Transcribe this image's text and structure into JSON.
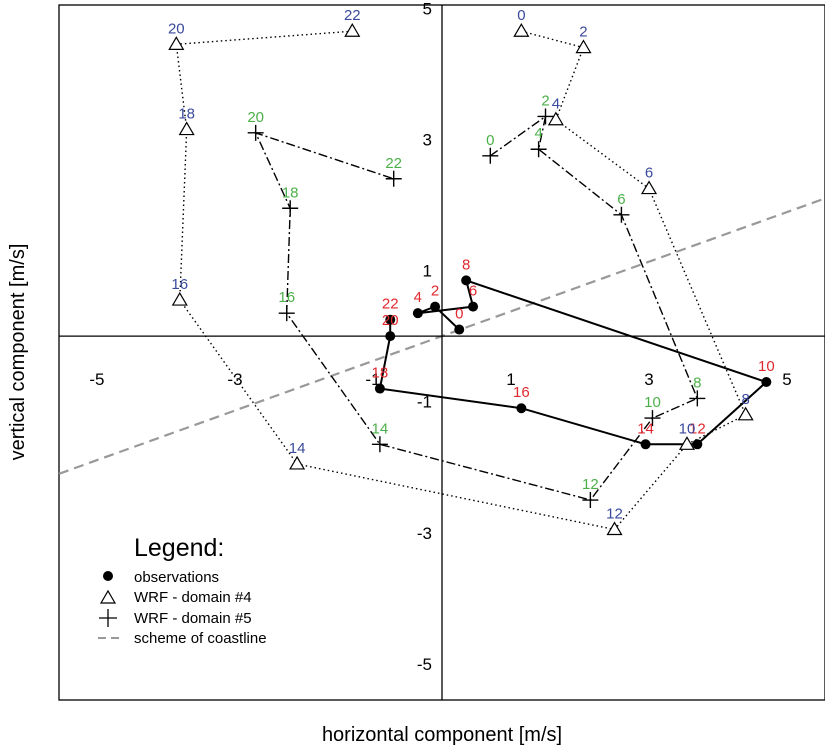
{
  "chart_data": {
    "type": "scatter",
    "xlabel": "horizontal component [m/s]",
    "ylabel": "vertical component [m/s]",
    "xlim": [
      -5.55,
      5.55
    ],
    "ylim": [
      -5.55,
      5.05
    ],
    "x_ticks": [
      -5,
      -3,
      -1,
      1,
      3,
      5
    ],
    "y_ticks": [
      -5,
      -3,
      -1,
      1,
      3,
      5
    ],
    "origin_axes": true,
    "legend": {
      "title": "Legend:",
      "placement": "bottom-left",
      "entries": [
        {
          "label": "observations",
          "symbol": "filled-circle"
        },
        {
          "label": "WRF - domain #4",
          "symbol": "triangle"
        },
        {
          "label": "WRF - domain #5",
          "symbol": "plus"
        },
        {
          "label": "scheme of coastline",
          "symbol": "dashed-line"
        }
      ]
    },
    "colors": {
      "observations_labels": "#e0282e",
      "domain4_labels": "#3a4a9e",
      "domain5_labels": "#4cb04a",
      "coastline": "#999999",
      "series": "#000000"
    },
    "coastline": {
      "x": [
        -5.55,
        5.55
      ],
      "y": [
        -2.1,
        2.1
      ]
    },
    "series": [
      {
        "name": "observations",
        "marker": "filled-circle",
        "line": "solid",
        "label_color": "#e0282e",
        "points": [
          {
            "x": 0.25,
            "y": 0.1,
            "label": "0"
          },
          {
            "x": -0.1,
            "y": 0.45,
            "label": "2"
          },
          {
            "x": -0.35,
            "y": 0.35,
            "label": "4"
          },
          {
            "x": 0.45,
            "y": 0.45,
            "label": "6"
          },
          {
            "x": 0.35,
            "y": 0.85,
            "label": "8"
          },
          {
            "x": 4.7,
            "y": -0.7,
            "label": "10"
          },
          {
            "x": 3.7,
            "y": -1.65,
            "label": "12"
          },
          {
            "x": 2.95,
            "y": -1.65,
            "label": "14"
          },
          {
            "x": 1.15,
            "y": -1.1,
            "label": "16"
          },
          {
            "x": 1.15,
            "y": -1.1,
            "label": "16"
          },
          {
            "x": -0.9,
            "y": -0.8,
            "label": "18"
          },
          {
            "x": -0.75,
            "y": 0.0,
            "label": "20"
          },
          {
            "x": -0.75,
            "y": 0.25,
            "label": "22"
          }
        ],
        "marker_points": [
          {
            "x": 0.25,
            "y": 0.1
          },
          {
            "x": -0.1,
            "y": 0.45
          },
          {
            "x": -0.35,
            "y": 0.35
          },
          {
            "x": 0.45,
            "y": 0.45
          },
          {
            "x": 0.35,
            "y": 0.85
          },
          {
            "x": 4.7,
            "y": -0.7
          },
          {
            "x": 3.7,
            "y": -1.65
          },
          {
            "x": 2.95,
            "y": -1.65
          },
          {
            "x": 1.15,
            "y": -1.1
          },
          {
            "x": -0.9,
            "y": -0.8
          },
          {
            "x": -0.75,
            "y": 0.0
          },
          {
            "x": -0.75,
            "y": 0.25
          }
        ]
      },
      {
        "name": "WRF - domain #4",
        "marker": "triangle",
        "line": "dotted",
        "label_color": "#3a4a9e",
        "points": [
          {
            "x": 1.15,
            "y": 4.65,
            "label": "0"
          },
          {
            "x": 2.05,
            "y": 4.4,
            "label": "2"
          },
          {
            "x": 1.65,
            "y": 3.3,
            "label": "4"
          },
          {
            "x": 3.0,
            "y": 2.25,
            "label": "6"
          },
          {
            "x": 4.4,
            "y": -1.2,
            "label": "8"
          },
          {
            "x": 3.55,
            "y": -1.65,
            "label": "10"
          },
          {
            "x": 2.5,
            "y": -2.95,
            "label": "12"
          },
          {
            "x": -2.1,
            "y": -1.95,
            "label": "14"
          },
          {
            "x": -3.8,
            "y": 0.55,
            "label": "16"
          },
          {
            "x": -3.7,
            "y": 3.15,
            "label": "18"
          },
          {
            "x": -3.85,
            "y": 4.45,
            "label": "20"
          },
          {
            "x": -1.3,
            "y": 4.65,
            "label": "22"
          }
        ]
      },
      {
        "name": "WRF - domain #5",
        "marker": "plus",
        "line": "dashdot",
        "label_color": "#4cb04a",
        "points": [
          {
            "x": 0.7,
            "y": 2.75,
            "label": "0"
          },
          {
            "x": 1.5,
            "y": 3.35,
            "label": "2"
          },
          {
            "x": 1.4,
            "y": 2.85,
            "label": "4"
          },
          {
            "x": 2.6,
            "y": 1.85,
            "label": "6"
          },
          {
            "x": 3.7,
            "y": -0.95,
            "label": "8"
          },
          {
            "x": 3.05,
            "y": -1.25,
            "label": "10"
          },
          {
            "x": 2.15,
            "y": -2.5,
            "label": "12"
          },
          {
            "x": -0.9,
            "y": -1.65,
            "label": "14"
          },
          {
            "x": -2.25,
            "y": 0.35,
            "label": "16"
          },
          {
            "x": -2.2,
            "y": 1.95,
            "label": "18"
          },
          {
            "x": -2.7,
            "y": 3.1,
            "label": "20"
          },
          {
            "x": -0.7,
            "y": 2.4,
            "label": "22"
          }
        ]
      }
    ]
  }
}
